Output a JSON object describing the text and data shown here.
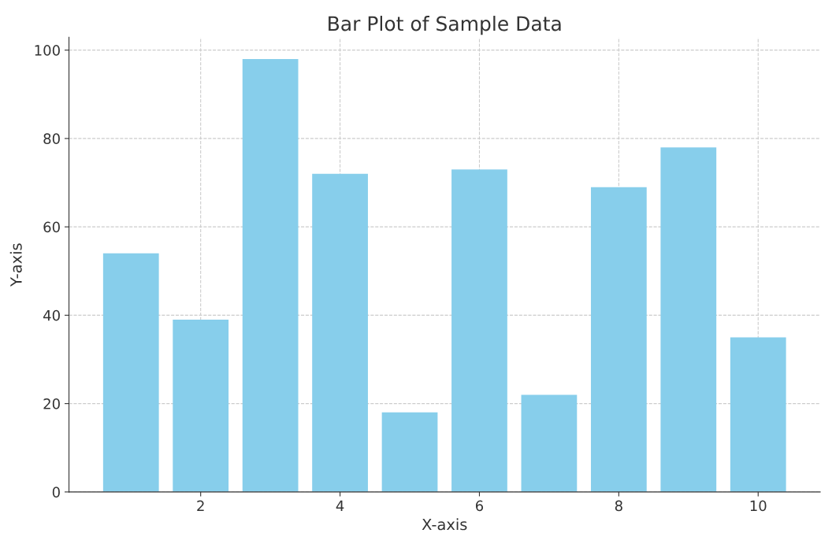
{
  "chart_data": {
    "type": "bar",
    "title": "Bar Plot of Sample Data",
    "xlabel": "X-axis",
    "ylabel": "Y-axis",
    "x": [
      1,
      2,
      3,
      4,
      5,
      6,
      7,
      8,
      9,
      10
    ],
    "values": [
      54,
      39,
      98,
      72,
      18,
      73,
      22,
      69,
      78,
      35
    ],
    "color": "#87ceeb",
    "xlim": [
      0.11,
      10.89
    ],
    "xticks": [
      2,
      4,
      6,
      8,
      10
    ],
    "ylim": [
      0,
      102.9
    ],
    "yticks": [
      0,
      20,
      40,
      60,
      80,
      100
    ],
    "grid": true
  }
}
